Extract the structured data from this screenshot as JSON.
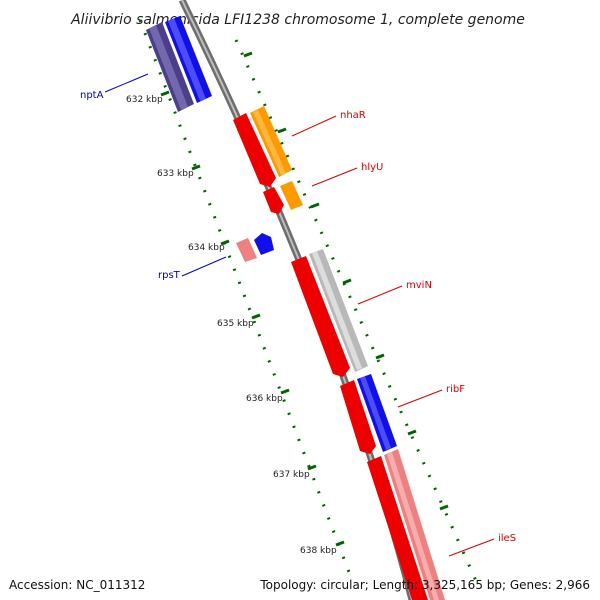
{
  "title": "Aliivibrio salmonicida LFI1238 chromosome 1, complete genome",
  "accession": "Accession: NC_011312",
  "summary": "Topology: circular; Length: 3,325,165 bp; Genes: 2,966",
  "ticks": [
    "632 kbp",
    "633 kbp",
    "634 kbp",
    "635 kbp",
    "636 kbp",
    "637 kbp",
    "638 kbp"
  ],
  "genes": [
    {
      "label": "nptA",
      "color": "#0000cc"
    },
    {
      "label": "nhaR",
      "color": "#dd0000"
    },
    {
      "label": "hlyU",
      "color": "#dd0000"
    },
    {
      "label": "rpsT",
      "color": "#0000cc"
    },
    {
      "label": "mviN",
      "color": "#dd0000"
    },
    {
      "label": "ribF",
      "color": "#dd0000"
    },
    {
      "label": "ileS",
      "color": "#dd0000"
    }
  ],
  "colors": {
    "backbone": "#808080",
    "forward_cds": "#ff0000",
    "reverse_cds": "#0000ff",
    "orange": "#ff9900",
    "gray": "#bbbbbb",
    "pink": "#f08080",
    "dark": "#4b3f8c",
    "tick": "#006400"
  }
}
